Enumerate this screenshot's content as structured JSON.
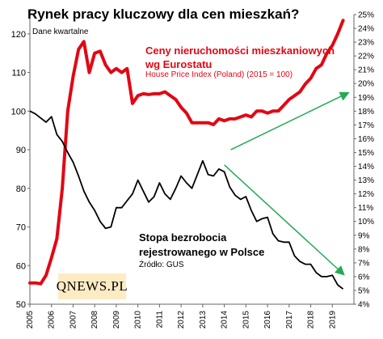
{
  "title": "Rynek pracy kluczowy dla cen mieszkań?",
  "subtitle": "Dane kwartalne",
  "hpi_label_line1": "Ceny nieruchomości mieszkaniowych",
  "hpi_label_line2": "wg Eurostatu",
  "hpi_sublabel": "House Price Index (Poland) (2015 = 100)",
  "unemp_label_line1": "Stopa bezrobocia",
  "unemp_label_line2": "rejestrowanego w Polsce",
  "source": "Źródło: GUS",
  "logo": "QNEWS.PL",
  "colors": {
    "hpi": "#e30613",
    "unemployment": "#000000",
    "arrows": "#22aa55",
    "logo_bg": "#fdebc4"
  },
  "chart_data": {
    "type": "line",
    "title": "Rynek pracy kluczowy dla cen mieszkań?",
    "x_tick_labels": [
      "2005",
      "2006",
      "2007",
      "2008",
      "2009",
      "2010",
      "2011",
      "2012",
      "2013",
      "2014",
      "2015",
      "2016",
      "2017",
      "2018",
      "2019"
    ],
    "left_axis": {
      "ylim": [
        50,
        125
      ],
      "ticks": [
        50,
        60,
        70,
        80,
        90,
        100,
        110,
        120
      ]
    },
    "right_axis": {
      "ylim": [
        4,
        25
      ],
      "ticks": [
        4,
        5,
        6,
        7,
        8,
        9,
        10,
        11,
        12,
        13,
        14,
        15,
        16,
        17,
        18,
        19,
        20,
        21,
        22,
        23,
        24,
        25
      ],
      "unit": "%"
    },
    "grid": false,
    "series": [
      {
        "name": "Ceny nieruchomości mieszkaniowych wg Eurostatu",
        "axis": "left",
        "x": [
          2005.0,
          2005.25,
          2005.5,
          2005.75,
          2006.0,
          2006.25,
          2006.5,
          2006.75,
          2007.0,
          2007.25,
          2007.5,
          2007.75,
          2008.0,
          2008.25,
          2008.5,
          2008.75,
          2009.0,
          2009.25,
          2009.5,
          2009.75,
          2010.0,
          2010.25,
          2010.5,
          2010.75,
          2011.0,
          2011.25,
          2011.5,
          2011.75,
          2012.0,
          2012.25,
          2012.5,
          2012.75,
          2013.0,
          2013.25,
          2013.5,
          2013.75,
          2014.0,
          2014.25,
          2014.5,
          2014.75,
          2015.0,
          2015.25,
          2015.5,
          2015.75,
          2016.0,
          2016.25,
          2016.5,
          2016.75,
          2017.0,
          2017.25,
          2017.5,
          2017.75,
          2018.0,
          2018.25,
          2018.5,
          2018.75,
          2019.0,
          2019.25,
          2019.5
        ],
        "values": [
          55.5,
          55.5,
          55.3,
          57.5,
          62,
          67,
          80,
          100,
          109,
          116,
          118,
          110,
          115,
          115.5,
          112,
          110,
          111,
          110,
          111,
          102,
          104,
          104.5,
          104.3,
          104.5,
          104.5,
          105,
          104,
          103,
          101,
          99.5,
          97,
          97,
          97,
          97,
          96.5,
          98,
          97.5,
          98,
          98,
          98.5,
          99,
          98.5,
          100,
          100,
          99.5,
          100,
          100,
          101.5,
          103,
          104,
          105,
          107,
          108.5,
          111,
          112,
          115,
          117,
          120,
          123.5
        ]
      },
      {
        "name": "Stopa bezrobocia rejestrowanego w Polsce",
        "axis": "right",
        "x": [
          2005.0,
          2005.25,
          2005.5,
          2005.75,
          2006.0,
          2006.25,
          2006.5,
          2006.75,
          2007.0,
          2007.25,
          2007.5,
          2007.75,
          2008.0,
          2008.25,
          2008.5,
          2008.75,
          2009.0,
          2009.25,
          2009.5,
          2009.75,
          2010.0,
          2010.25,
          2010.5,
          2010.75,
          2011.0,
          2011.25,
          2011.5,
          2011.75,
          2012.0,
          2012.25,
          2012.5,
          2012.75,
          2013.0,
          2013.25,
          2013.5,
          2013.75,
          2014.0,
          2014.25,
          2014.5,
          2014.75,
          2015.0,
          2015.25,
          2015.5,
          2015.75,
          2016.0,
          2016.25,
          2016.5,
          2016.75,
          2017.0,
          2017.25,
          2017.5,
          2017.75,
          2018.0,
          2018.25,
          2018.5,
          2018.75,
          2019.0,
          2019.25,
          2019.5
        ],
        "values": [
          18.0,
          17.8,
          17.5,
          17.2,
          17.6,
          16.3,
          15.8,
          15.0,
          14.3,
          13.3,
          12.2,
          11.4,
          10.8,
          10.0,
          9.5,
          9.6,
          11.0,
          11.0,
          11.5,
          12.0,
          13.0,
          12.2,
          11.4,
          11.8,
          12.8,
          12.0,
          11.6,
          12.4,
          13.3,
          12.8,
          12.4,
          13.4,
          14.4,
          13.4,
          13.3,
          13.8,
          13.6,
          12.5,
          11.9,
          11.6,
          11.8,
          10.8,
          10.0,
          10.2,
          10.3,
          9.1,
          8.6,
          8.5,
          8.5,
          7.5,
          7.1,
          6.9,
          6.9,
          6.3,
          6.0,
          6.0,
          6.1,
          5.4,
          5.1
        ]
      }
    ],
    "annotations": [
      "Ceny nieruchomości mieszkaniowych wg Eurostatu",
      "House Price Index (Poland) (2015 = 100)",
      "Stopa bezrobocia rejestrowanego w Polsce",
      "Źródło: GUS"
    ]
  }
}
